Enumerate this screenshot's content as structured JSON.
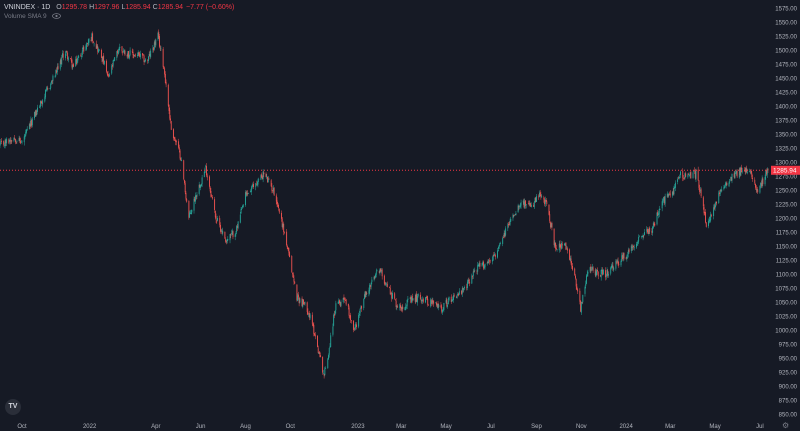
{
  "header": {
    "symbol": "VNINDEX · 1D",
    "ohlc": [
      {
        "label": "O",
        "value": "1295.78"
      },
      {
        "label": "H",
        "value": "1297.96"
      },
      {
        "label": "L",
        "value": "1285.94"
      },
      {
        "label": "C",
        "value": "1285.94"
      }
    ],
    "change": "−7.77 (−0.60%)",
    "indicator": "Volume SMA 9"
  },
  "logo_text": "TV",
  "settings_icon": "gear-icon",
  "colors": {
    "background": "#161a25",
    "up": "#26a69a",
    "down": "#ef5350",
    "price_label": "#f23645",
    "axis_text": "#b2b5be"
  },
  "chart_data": {
    "type": "candlestick",
    "title": "VNINDEX · 1D",
    "last_price": 1285.94,
    "last_price_label": "1285.94",
    "ylim": [
      840,
      1590
    ],
    "y_tick_labels": [
      "850.00",
      "875.00",
      "900.00",
      "925.00",
      "950.00",
      "975.00",
      "1000.00",
      "1025.00",
      "1050.00",
      "1075.00",
      "1100.00",
      "1125.00",
      "1150.00",
      "1175.00",
      "1200.00",
      "1225.00",
      "1250.00",
      "1275.00",
      "1300.00",
      "1325.00",
      "1350.00",
      "1375.00",
      "1400.00",
      "1425.00",
      "1450.00",
      "1475.00",
      "1500.00",
      "1525.00",
      "1550.00",
      "1575.00"
    ],
    "x_tick_labels": [
      "Oct",
      "2022",
      "Apr",
      "Jun",
      "Aug",
      "Oct",
      "2023",
      "Mar",
      "May",
      "Jul",
      "Sep",
      "Nov",
      "2024",
      "Mar",
      "May",
      "Jul"
    ],
    "x_tick_dates": [
      "2021-10-01",
      "2022-01-01",
      "2022-04-01",
      "2022-06-01",
      "2022-08-01",
      "2022-10-01",
      "2023-01-01",
      "2023-03-01",
      "2023-05-01",
      "2023-07-01",
      "2023-09-01",
      "2023-11-01",
      "2024-01-01",
      "2024-03-01",
      "2024-05-01",
      "2024-07-01"
    ],
    "date_range": [
      "2021-09-01",
      "2024-07-12"
    ],
    "price_path": [
      [
        "2021-09-01",
        1330
      ],
      [
        "2021-09-20",
        1345
      ],
      [
        "2021-10-01",
        1335
      ],
      [
        "2021-10-20",
        1390
      ],
      [
        "2021-11-05",
        1430
      ],
      [
        "2021-11-20",
        1470
      ],
      [
        "2021-11-28",
        1500
      ],
      [
        "2021-12-10",
        1470
      ],
      [
        "2021-12-20",
        1495
      ],
      [
        "2022-01-04",
        1525
      ],
      [
        "2022-01-13",
        1500
      ],
      [
        "2022-01-20",
        1480
      ],
      [
        "2022-01-26",
        1450
      ],
      [
        "2022-02-10",
        1505
      ],
      [
        "2022-02-20",
        1495
      ],
      [
        "2022-03-10",
        1490
      ],
      [
        "2022-03-20",
        1480
      ],
      [
        "2022-04-04",
        1525
      ],
      [
        "2022-04-12",
        1470
      ],
      [
        "2022-04-22",
        1360
      ],
      [
        "2022-05-05",
        1310
      ],
      [
        "2022-05-16",
        1200
      ],
      [
        "2022-05-25",
        1240
      ],
      [
        "2022-06-08",
        1290
      ],
      [
        "2022-06-22",
        1200
      ],
      [
        "2022-07-06",
        1160
      ],
      [
        "2022-07-20",
        1180
      ],
      [
        "2022-08-01",
        1240
      ],
      [
        "2022-08-20",
        1270
      ],
      [
        "2022-08-26",
        1280
      ],
      [
        "2022-09-10",
        1245
      ],
      [
        "2022-09-22",
        1180
      ],
      [
        "2022-10-10",
        1060
      ],
      [
        "2022-10-24",
        1040
      ],
      [
        "2022-11-02",
        1000
      ],
      [
        "2022-11-16",
        920
      ],
      [
        "2022-11-22",
        960
      ],
      [
        "2022-12-01",
        1040
      ],
      [
        "2022-12-14",
        1060
      ],
      [
        "2022-12-27",
        1000
      ],
      [
        "2023-01-10",
        1060
      ],
      [
        "2023-01-30",
        1110
      ],
      [
        "2023-02-10",
        1080
      ],
      [
        "2023-02-25",
        1040
      ],
      [
        "2023-03-10",
        1050
      ],
      [
        "2023-03-25",
        1060
      ],
      [
        "2023-04-10",
        1050
      ],
      [
        "2023-04-25",
        1040
      ],
      [
        "2023-05-10",
        1060
      ],
      [
        "2023-05-25",
        1070
      ],
      [
        "2023-06-10",
        1110
      ],
      [
        "2023-06-25",
        1120
      ],
      [
        "2023-07-10",
        1140
      ],
      [
        "2023-07-25",
        1190
      ],
      [
        "2023-08-10",
        1230
      ],
      [
        "2023-08-24",
        1220
      ],
      [
        "2023-09-05",
        1240
      ],
      [
        "2023-09-15",
        1225
      ],
      [
        "2023-09-26",
        1150
      ],
      [
        "2023-10-10",
        1150
      ],
      [
        "2023-10-23",
        1100
      ],
      [
        "2023-10-31",
        1040
      ],
      [
        "2023-11-10",
        1110
      ],
      [
        "2023-11-20",
        1105
      ],
      [
        "2023-12-05",
        1100
      ],
      [
        "2023-12-20",
        1120
      ],
      [
        "2024-01-05",
        1140
      ],
      [
        "2024-01-20",
        1170
      ],
      [
        "2024-02-05",
        1180
      ],
      [
        "2024-02-20",
        1230
      ],
      [
        "2024-03-05",
        1250
      ],
      [
        "2024-03-15",
        1280
      ],
      [
        "2024-03-25",
        1275
      ],
      [
        "2024-04-05",
        1280
      ],
      [
        "2024-04-15",
        1225
      ],
      [
        "2024-04-20",
        1180
      ],
      [
        "2024-05-02",
        1230
      ],
      [
        "2024-05-15",
        1260
      ],
      [
        "2024-05-25",
        1280
      ],
      [
        "2024-06-10",
        1285
      ],
      [
        "2024-06-20",
        1280
      ],
      [
        "2024-06-28",
        1250
      ],
      [
        "2024-07-05",
        1268
      ],
      [
        "2024-07-12",
        1286
      ]
    ],
    "grid": false
  }
}
